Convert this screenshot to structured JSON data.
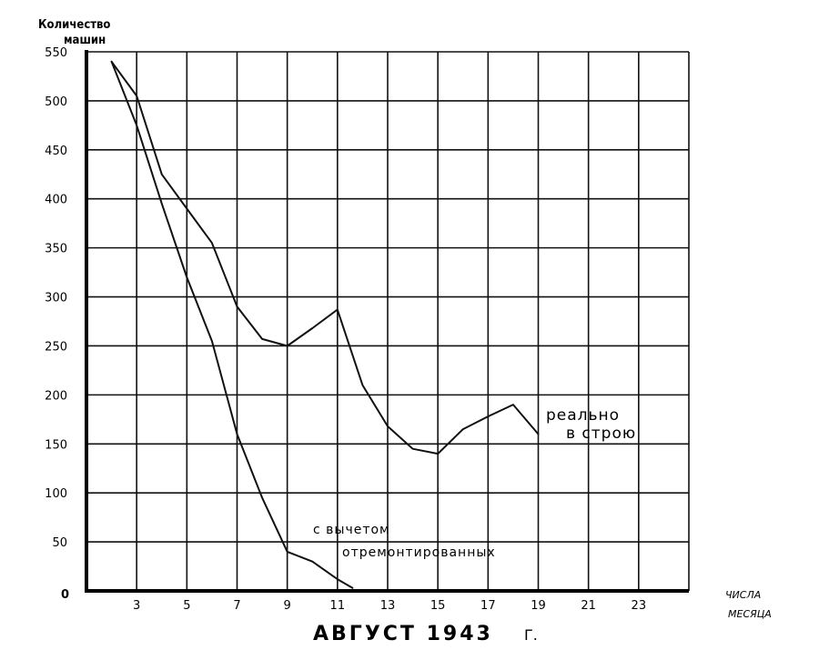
{
  "chart_data": {
    "type": "line",
    "title": "АВГУСТ 1943",
    "title_suffix": "Г.",
    "ylabel": [
      "Количество",
      "машин"
    ],
    "xlabel": [
      "ЧИСЛА",
      "МЕСЯЦА"
    ],
    "xlim": [
      1,
      25
    ],
    "ylim": [
      0,
      550
    ],
    "y_ticks": [
      0,
      50,
      100,
      150,
      200,
      250,
      300,
      350,
      400,
      450,
      500,
      550
    ],
    "y_tick_labels": [
      "0",
      "50",
      "100",
      "150",
      "200",
      "250",
      "300",
      "350",
      "400",
      "450",
      "500",
      "550"
    ],
    "x_ticks": [
      3,
      5,
      7,
      9,
      11,
      13,
      15,
      17,
      19,
      21,
      23
    ],
    "x_tick_labels": [
      "3",
      "5",
      "7",
      "9",
      "11",
      "13",
      "15",
      "17",
      "19",
      "21",
      "23"
    ],
    "grid": true,
    "series": [
      {
        "name": "реально в строю",
        "label_lines": [
          "реально",
          "в строю"
        ],
        "x": [
          2,
          3,
          4,
          5,
          6,
          7,
          8,
          9,
          10,
          11,
          12,
          13,
          14,
          15,
          16,
          17,
          18,
          19
        ],
        "y": [
          540,
          505,
          425,
          390,
          355,
          290,
          257,
          250,
          268,
          287,
          210,
          168,
          145,
          140,
          165,
          178,
          190,
          160
        ]
      },
      {
        "name": "с вычетом отремонтированных",
        "label_lines": [
          "с вычетом",
          "отремонтированных"
        ],
        "x": [
          2,
          3,
          4,
          5,
          6,
          7,
          8,
          9,
          10,
          11,
          11.6
        ],
        "y": [
          540,
          475,
          395,
          320,
          255,
          160,
          95,
          40,
          30,
          12,
          3
        ]
      }
    ]
  }
}
